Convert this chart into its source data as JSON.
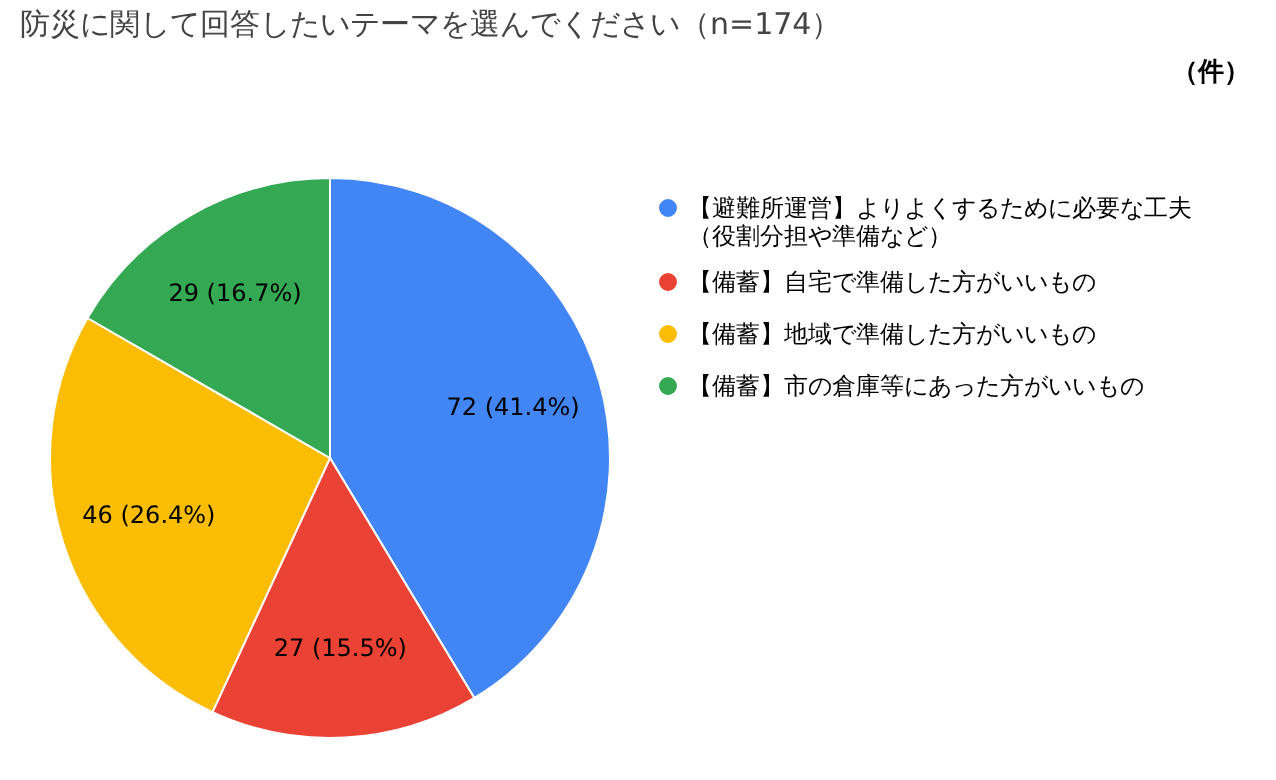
{
  "chart_data": {
    "type": "pie",
    "title": "防災に関して回答したいテーマを選んでください（n=174）",
    "categories": [
      "【避難所運営】よりよくするために必要な工夫（役割分担や準備など）",
      "【備蓄】自宅で準備した方がいいもの",
      "【備蓄】地域で準備した方がいいもの",
      "【備蓄】市の倉庫等にあった方がいいもの"
    ],
    "values": [
      72,
      27,
      46,
      29
    ],
    "value_labels": [
      "72 (41.4%)",
      "27 (15.5%)",
      "46 (26.4%)",
      "29 (16.7%)"
    ],
    "colors": [
      "#4285f4",
      "#ea4335",
      "#fbbc04",
      "#34a853"
    ],
    "legend": "right",
    "annotations": [
      "（件）"
    ]
  }
}
